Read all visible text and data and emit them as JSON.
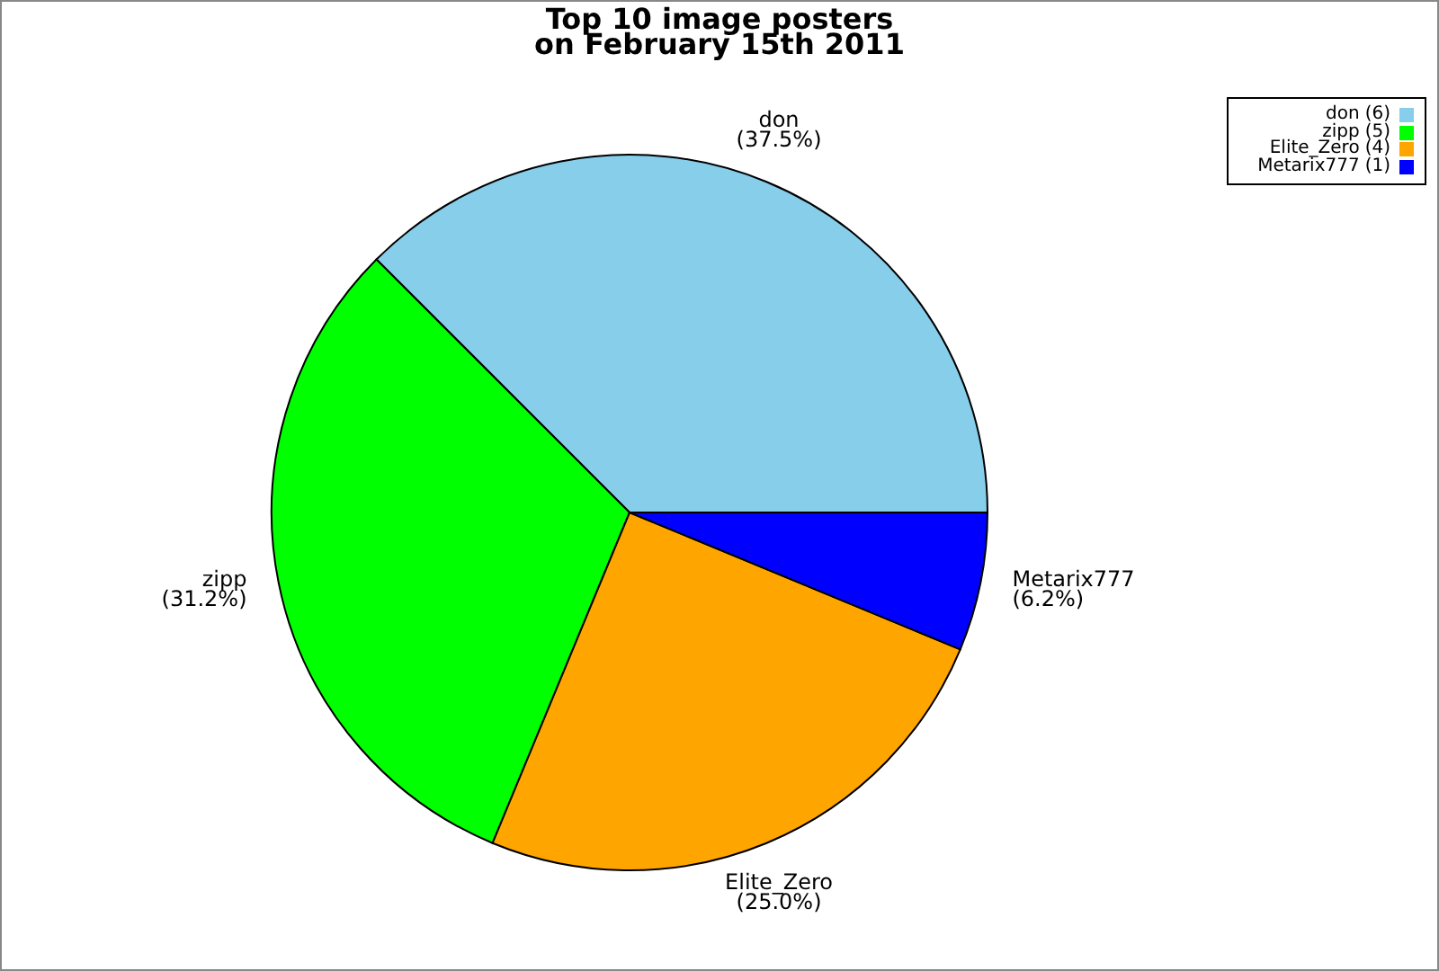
{
  "chart_data": {
    "type": "pie",
    "title": "Top 10 image posters\non February 15th 2011",
    "categories": [
      "don",
      "zipp",
      "Elite_Zero",
      "Metarix777"
    ],
    "values": [
      37.5,
      31.25,
      25,
      6.25
    ],
    "colors": [
      "#87ceeb",
      "#00ff00",
      "#ffa500",
      "#0000ff"
    ],
    "value_labels": [
      "(37.5%)",
      "(31.2%)",
      "(25.0%)",
      "(6.2%)"
    ],
    "annotations": [
      "(6)",
      "(5)",
      "(4)",
      "(1)"
    ],
    "legend": "top right"
  }
}
